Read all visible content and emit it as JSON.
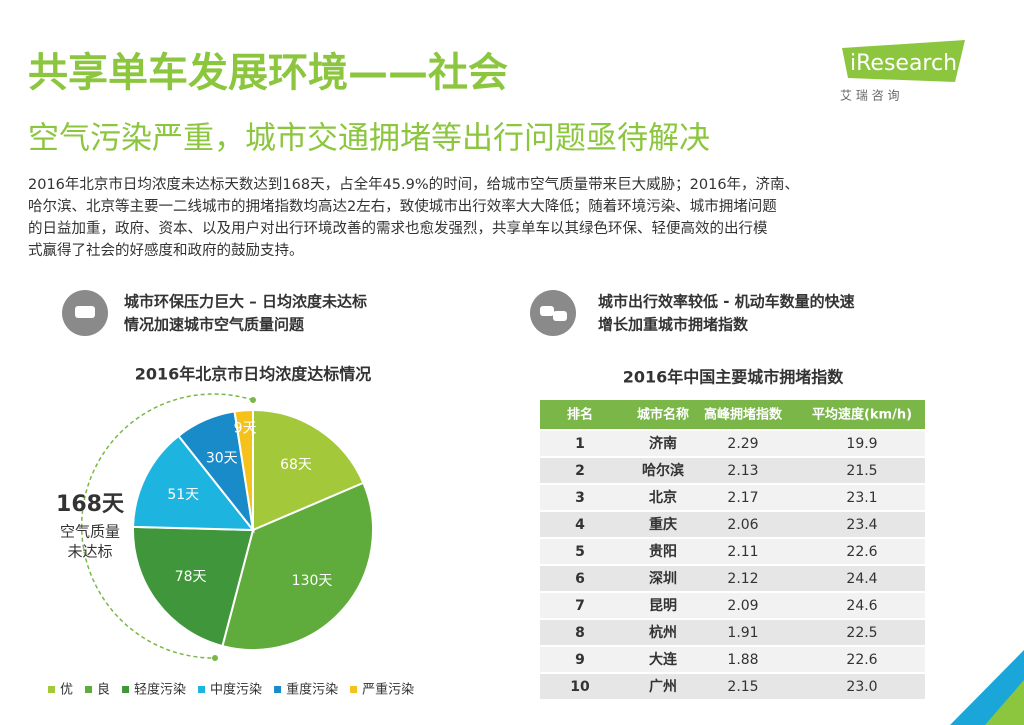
{
  "header": {
    "title": "共享单车发展环境——社会",
    "subtitle": "空气污染严重，城市交通拥堵等出行问题亟待解决",
    "logo": "iResearch",
    "logo_sub": "艾 瑞 咨 询"
  },
  "intro": [
    "2016年北京市日均浓度未达标天数达到168天，占全年45.9%的时间，给城市空气质量带来巨大威胁；2016年，济南、",
    "哈尔滨、北京等主要一二线城市的拥堵指数均高达2左右，致使城市出行效率大大降低；随着环境污染、城市拥堵问题",
    "的日益加重，政府、资本、以及用户对出行环境改善的需求也愈发强烈，共享单车以其绿色环保、轻便高效的出行模",
    "式赢得了社会的好感度和政府的鼓励支持。"
  ],
  "left_heading": [
    "城市环保压力巨大 – 日均浓度未达标",
    "情况加速城市空气质量问题"
  ],
  "right_heading": [
    "城市出行效率较低 - 机动车数量的快速",
    "增长加重城市拥堵指数"
  ],
  "chart_data": {
    "type": "pie",
    "title": "2016年北京市日均浓度达标情况",
    "categories": [
      "优",
      "良",
      "轻度污染",
      "中度污染",
      "重度污染",
      "严重污染"
    ],
    "values": [
      68,
      130,
      78,
      51,
      30,
      9
    ],
    "value_labels": [
      "68天",
      "130天",
      "78天",
      "51天",
      "30天",
      "9天"
    ],
    "colors": [
      "#a3c83a",
      "#5fab3b",
      "#40973b",
      "#1db4e0",
      "#1a8bc9",
      "#f4c21b"
    ],
    "annotation": {
      "value": "168天",
      "lines": [
        "空气质量",
        "未达标"
      ]
    }
  },
  "table": {
    "title": "2016年中国主要城市拥堵指数",
    "header": [
      "排名",
      "城市名称",
      "高峰拥堵指数",
      "平均速度(km/h)"
    ],
    "rows": [
      [
        "1",
        "济南",
        "2.29",
        "19.9"
      ],
      [
        "2",
        "哈尔滨",
        "2.13",
        "21.5"
      ],
      [
        "3",
        "北京",
        "2.17",
        "23.1"
      ],
      [
        "4",
        "重庆",
        "2.06",
        "23.4"
      ],
      [
        "5",
        "贵阳",
        "2.11",
        "22.6"
      ],
      [
        "6",
        "深圳",
        "2.12",
        "24.4"
      ],
      [
        "7",
        "昆明",
        "2.09",
        "24.6"
      ],
      [
        "8",
        "杭州",
        "1.91",
        "22.5"
      ],
      [
        "9",
        "大连",
        "1.88",
        "22.6"
      ],
      [
        "10",
        "广州",
        "2.15",
        "23.0"
      ]
    ]
  }
}
